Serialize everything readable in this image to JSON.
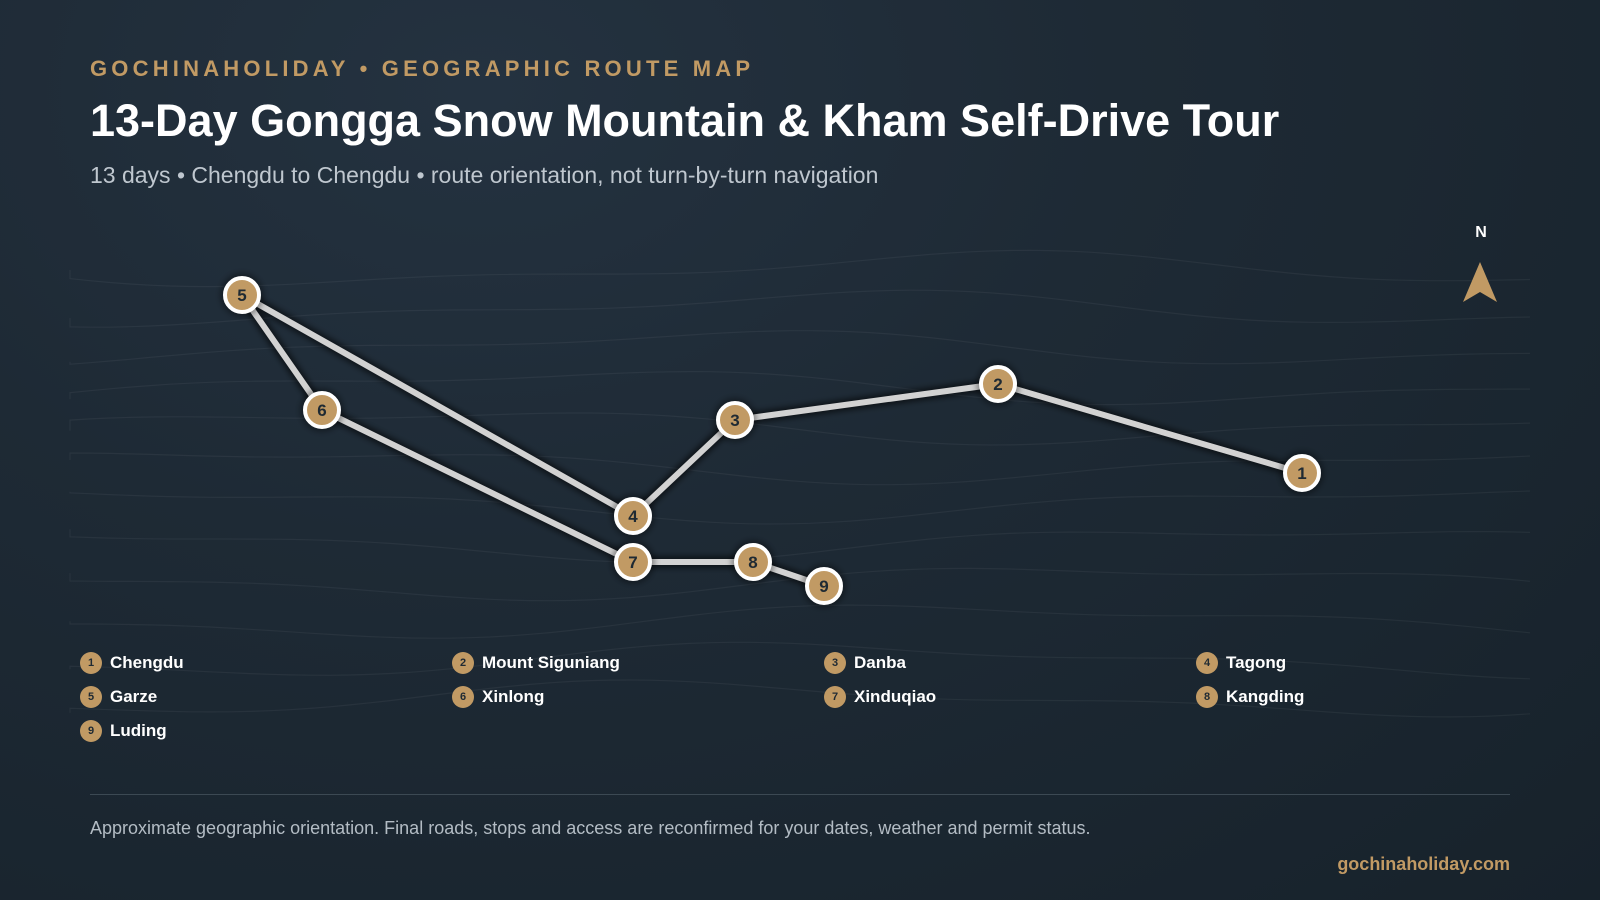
{
  "header": {
    "kicker": "GOCHINAHOLIDAY • GEOGRAPHIC ROUTE MAP",
    "title": "13-Day Gongga Snow Mountain & Kham Self-Drive Tour",
    "subtitle": "13 days • Chengdu to Chengdu • route orientation, not turn-by-turn navigation"
  },
  "compass": {
    "label": "N",
    "icon": "north-arrow-icon"
  },
  "route": {
    "stops": [
      {
        "num": "1",
        "name": "Chengdu"
      },
      {
        "num": "2",
        "name": "Mount Siguniang"
      },
      {
        "num": "3",
        "name": "Danba"
      },
      {
        "num": "4",
        "name": "Tagong"
      },
      {
        "num": "5",
        "name": "Garze"
      },
      {
        "num": "6",
        "name": "Xinlong"
      },
      {
        "num": "7",
        "name": "Xinduqiao"
      },
      {
        "num": "8",
        "name": "Kangding"
      },
      {
        "num": "9",
        "name": "Luding"
      }
    ]
  },
  "footer": {
    "note": "Approximate geographic orientation. Final roads, stops and access are reconfirmed for your dates, weather and permit status.",
    "site": "gochinaholiday.com"
  },
  "colors": {
    "background": "#1e2a35",
    "accent": "#c19a64",
    "route_line": "#d2d2d2",
    "marker_border": "#ffffff",
    "title": "#ffffff",
    "subtitle": "#bfc7cf"
  }
}
